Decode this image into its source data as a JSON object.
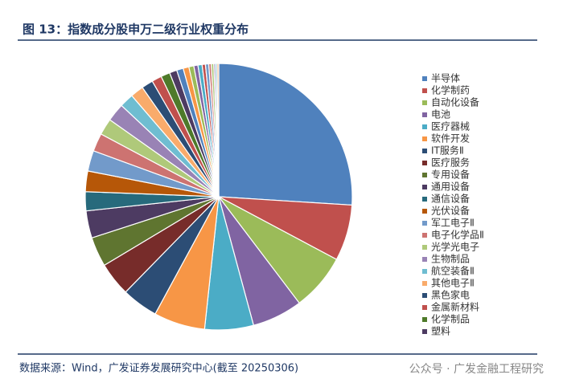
{
  "chart_data": {
    "type": "pie",
    "title": "图 13：指数成分股申万二级行业权重分布",
    "source": "数据来源：Wind，广发证券发展研究中心(截至 20250306)",
    "watermark": "公众号 · 广发金融工程研究",
    "legend": "right",
    "categories": [
      "半导体",
      "化学制药",
      "自动化设备",
      "电池",
      "医疗器械",
      "软件开发",
      "IT服务Ⅱ",
      "医疗服务",
      "专用设备",
      "通用设备",
      "通信设备",
      "光伏设备",
      "军工电子Ⅱ",
      "电子化学品Ⅱ",
      "光学光电子",
      "生物制品",
      "航空装备Ⅱ",
      "其他电子Ⅱ",
      "黑色家电",
      "金属新材料",
      "化学制品",
      "塑料",
      null,
      null,
      null,
      null,
      null,
      null,
      null,
      null,
      null,
      null,
      null,
      null
    ],
    "values": [
      26,
      6.8,
      6.9,
      6.1,
      5.9,
      6.2,
      4.4,
      4.1,
      3.6,
      3.3,
      2.3,
      2.5,
      2.5,
      2.2,
      2.0,
      2.2,
      1.7,
      1.6,
      1.4,
      1.2,
      1.1,
      0.9,
      0.8,
      0.7,
      0.6,
      0.5,
      0.5,
      0.4,
      0.4,
      0.3,
      0.3,
      0.2,
      0.2,
      0.2
    ],
    "colors": [
      "#4f81bd",
      "#c0504d",
      "#9bbb59",
      "#8064a2",
      "#4bacc6",
      "#f79646",
      "#2c4d75",
      "#772c2a",
      "#5f7530",
      "#4d3b62",
      "#276a7c",
      "#b65708",
      "#729aca",
      "#cd7371",
      "#afc97a",
      "#9983b5",
      "#6fbdd1",
      "#f9ab6b",
      "#2c4d75",
      "#c0504d",
      "#4e7a2a",
      "#4d3b62",
      "#4f81bd",
      "#f79646",
      "#9bbb59",
      "#8064a2",
      "#4bacc6",
      "#c0504d",
      "#729aca",
      "#cd7371",
      "#afc97a",
      "#9983b5",
      "#6fbdd1",
      "#f9ab6b"
    ]
  }
}
